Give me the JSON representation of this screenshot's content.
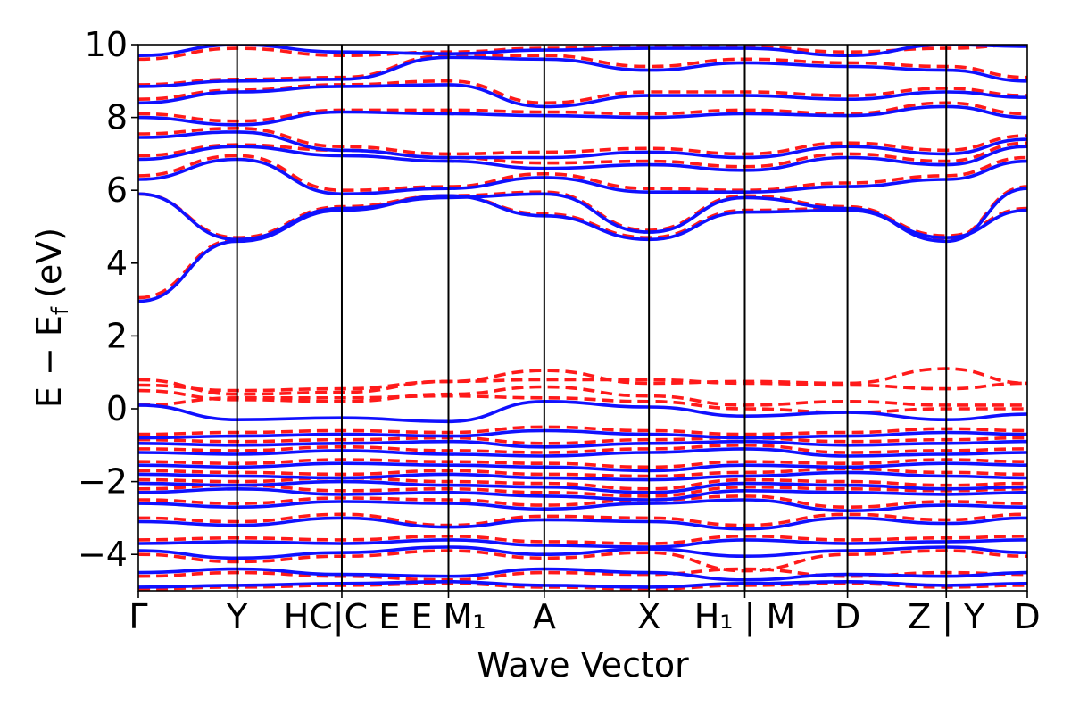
{
  "chart_data": {
    "type": "line",
    "title": "",
    "xlabel": "Wave Vector",
    "ylabel": "E − E",
    "ylabel_sub": "f",
    "ylabel_unit": "(eV)",
    "ylim": [
      -5,
      10
    ],
    "y_ticks": [
      -4,
      -2,
      0,
      2,
      4,
      6,
      8,
      10
    ],
    "y_tick_labels": [
      "−4",
      "−2",
      "0",
      "2",
      "4",
      "6",
      "8",
      "10"
    ],
    "x_segments": 9,
    "kpoint_labels": [
      {
        "text": "Γ",
        "italic": false
      },
      {
        "text": "Y",
        "italic": false
      },
      {
        "text": "HC|C E",
        "italic": false,
        "display": "HC|C E"
      },
      {
        "text": "E M₁",
        "italic": false
      },
      {
        "text": "A",
        "italic": false
      },
      {
        "text": "X",
        "italic": false
      },
      {
        "text": "H₁ | M",
        "italic": false
      },
      {
        "text": "D",
        "italic": false
      },
      {
        "text": "Z | Y",
        "italic": false
      },
      {
        "text": "D",
        "italic": false
      }
    ],
    "kpoint_positions": [
      0,
      1,
      2.06,
      3.14,
      4.11,
      5.17,
      6.14,
      7.18,
      8.18,
      9.0
    ],
    "series": [
      {
        "style": "solid",
        "color": "#1010ff",
        "bands": [
          [
            -4.9,
            -4.85,
            -4.8,
            -4.75,
            -4.85,
            -4.9,
            -4.8,
            -4.75,
            -4.85,
            -4.8
          ],
          [
            -4.5,
            -4.4,
            -4.55,
            -4.6,
            -4.4,
            -4.5,
            -4.7,
            -4.55,
            -4.6,
            -4.5
          ],
          [
            -3.9,
            -4.1,
            -3.95,
            -3.8,
            -4.0,
            -3.85,
            -4.05,
            -3.9,
            -3.8,
            -3.95
          ],
          [
            -3.7,
            -3.65,
            -3.7,
            -3.6,
            -3.75,
            -3.8,
            -3.6,
            -3.7,
            -3.65,
            -3.6
          ],
          [
            -3.1,
            -3.2,
            -3.0,
            -3.25,
            -3.05,
            -3.1,
            -3.3,
            -3.0,
            -3.15,
            -3.0
          ],
          [
            -2.6,
            -2.7,
            -2.55,
            -2.6,
            -2.75,
            -2.6,
            -2.5,
            -2.8,
            -2.65,
            -2.7
          ],
          [
            -2.3,
            -2.2,
            -2.35,
            -2.3,
            -2.4,
            -2.5,
            -2.25,
            -2.3,
            -2.35,
            -2.3
          ],
          [
            -2.05,
            -2.1,
            -2.0,
            -2.1,
            -2.15,
            -2.3,
            -2.05,
            -2.1,
            -2.2,
            -2.15
          ],
          [
            -1.8,
            -1.85,
            -1.9,
            -1.8,
            -1.9,
            -1.95,
            -1.85,
            -1.75,
            -1.85,
            -1.9
          ],
          [
            -1.55,
            -1.6,
            -1.5,
            -1.55,
            -1.6,
            -1.7,
            -1.55,
            -1.6,
            -1.5,
            -1.55
          ],
          [
            -1.2,
            -1.25,
            -1.15,
            -1.25,
            -1.3,
            -1.2,
            -1.1,
            -1.3,
            -1.25,
            -1.2
          ],
          [
            -0.95,
            -1.0,
            -0.95,
            -0.9,
            -1.05,
            -0.95,
            -0.9,
            -1.0,
            -0.95,
            -0.9
          ],
          [
            -0.8,
            -0.75,
            -0.7,
            -0.75,
            -0.6,
            -0.7,
            -0.8,
            -0.75,
            -0.65,
            -0.7
          ],
          [
            0.1,
            -0.3,
            -0.25,
            -0.35,
            0.2,
            0.05,
            -0.2,
            -0.1,
            -0.3,
            -0.15
          ],
          [
            2.95,
            4.6,
            5.45,
            5.85,
            5.3,
            4.65,
            5.4,
            5.45,
            4.7,
            5.45
          ],
          [
            5.9,
            4.65,
            5.5,
            5.8,
            5.9,
            4.85,
            5.8,
            5.5,
            4.6,
            6.05
          ],
          [
            6.3,
            6.85,
            5.9,
            6.05,
            6.35,
            5.95,
            5.95,
            6.1,
            6.3,
            6.8
          ],
          [
            6.85,
            7.2,
            6.95,
            6.8,
            6.6,
            6.7,
            6.55,
            6.9,
            6.7,
            7.2
          ],
          [
            7.45,
            7.6,
            7.1,
            6.9,
            6.9,
            7.05,
            6.9,
            7.2,
            7.0,
            7.4
          ],
          [
            8.0,
            7.8,
            8.15,
            8.1,
            8.05,
            8.0,
            8.1,
            8.05,
            8.3,
            8.0
          ],
          [
            8.4,
            8.7,
            8.85,
            8.9,
            8.3,
            8.6,
            8.6,
            8.5,
            8.7,
            8.55
          ],
          [
            8.85,
            9.0,
            9.05,
            9.65,
            9.6,
            9.3,
            9.5,
            9.4,
            9.3,
            9.0
          ],
          [
            9.7,
            10.0,
            9.8,
            9.75,
            9.85,
            9.9,
            9.9,
            9.7,
            10.0,
            9.95
          ]
        ]
      },
      {
        "style": "dashed",
        "color": "#ff1a1a",
        "bands": [
          [
            -4.95,
            -4.9,
            -4.85,
            -4.8,
            -4.9,
            -4.95,
            -4.85,
            -4.8,
            -4.9,
            -4.85
          ],
          [
            -4.6,
            -4.5,
            -4.6,
            -4.7,
            -4.5,
            -4.55,
            -4.4,
            -4.6,
            -4.5,
            -4.55
          ],
          [
            -4.0,
            -4.2,
            -4.05,
            -3.9,
            -4.1,
            -3.95,
            -4.45,
            -4.0,
            -3.9,
            -4.05
          ],
          [
            -3.6,
            -3.55,
            -3.6,
            -3.5,
            -3.65,
            -3.7,
            -3.5,
            -3.6,
            -3.55,
            -3.5
          ],
          [
            -3.0,
            -3.1,
            -2.9,
            -3.2,
            -2.95,
            -3.0,
            -3.2,
            -2.9,
            -3.05,
            -2.9
          ],
          [
            -2.5,
            -2.6,
            -2.45,
            -2.5,
            -2.65,
            -2.5,
            -2.4,
            -2.7,
            -2.55,
            -2.6
          ],
          [
            -2.2,
            -2.1,
            -2.25,
            -2.2,
            -2.3,
            -2.4,
            -2.15,
            -2.2,
            -2.25,
            -2.2
          ],
          [
            -1.95,
            -2.0,
            -1.9,
            -2.0,
            -2.05,
            -2.2,
            -1.95,
            -2.0,
            -2.1,
            -2.05
          ],
          [
            -1.7,
            -1.75,
            -1.8,
            -1.7,
            -1.8,
            -1.85,
            -1.75,
            -1.65,
            -1.75,
            -1.8
          ],
          [
            -1.45,
            -1.5,
            -1.4,
            -1.45,
            -1.5,
            -1.6,
            -1.45,
            -1.5,
            -1.4,
            -1.45
          ],
          [
            -1.1,
            -1.15,
            -1.05,
            -1.15,
            -1.2,
            -1.1,
            -1.0,
            -1.2,
            -1.15,
            -1.1
          ],
          [
            -0.85,
            -0.9,
            -0.85,
            -0.8,
            -0.95,
            -0.85,
            -0.8,
            -0.9,
            -0.85,
            -0.8
          ],
          [
            -0.7,
            -0.65,
            -0.6,
            -0.65,
            -0.5,
            -0.6,
            -0.7,
            -0.65,
            -0.55,
            -0.6
          ],
          [
            0.1,
            0.3,
            0.3,
            0.35,
            0.3,
            0.2,
            0.0,
            -0.1,
            0.0,
            0.0
          ],
          [
            0.5,
            0.25,
            0.2,
            0.4,
            0.6,
            0.35,
            0.1,
            0.2,
            0.1,
            0.1
          ],
          [
            0.65,
            0.5,
            0.55,
            0.75,
            1.05,
            0.7,
            0.75,
            0.7,
            1.1,
            0.7
          ],
          [
            0.8,
            0.4,
            0.45,
            0.75,
            0.8,
            0.8,
            0.7,
            0.65,
            0.55,
            0.7
          ],
          [
            3.05,
            4.65,
            5.5,
            5.85,
            5.35,
            4.7,
            5.45,
            5.5,
            4.75,
            5.5
          ],
          [
            5.9,
            4.7,
            5.55,
            5.85,
            5.95,
            4.9,
            5.85,
            5.55,
            4.65,
            6.1
          ],
          [
            6.4,
            6.95,
            6.0,
            6.1,
            6.45,
            6.05,
            6.0,
            6.2,
            6.4,
            6.9
          ],
          [
            6.95,
            7.25,
            7.1,
            6.9,
            6.75,
            6.8,
            6.65,
            7.0,
            6.8,
            7.3
          ],
          [
            7.55,
            7.7,
            7.2,
            7.0,
            7.05,
            7.15,
            7.0,
            7.3,
            7.1,
            7.5
          ],
          [
            8.1,
            7.9,
            8.2,
            8.2,
            8.15,
            8.1,
            8.2,
            8.1,
            8.4,
            8.1
          ],
          [
            8.5,
            8.75,
            8.9,
            9.0,
            8.4,
            8.7,
            8.7,
            8.6,
            8.8,
            8.6
          ],
          [
            8.9,
            9.05,
            9.1,
            9.7,
            9.7,
            9.4,
            9.6,
            9.5,
            9.4,
            9.1
          ],
          [
            9.6,
            9.9,
            9.7,
            9.8,
            9.9,
            9.95,
            9.95,
            9.8,
            9.9,
            10.0
          ]
        ]
      }
    ]
  }
}
